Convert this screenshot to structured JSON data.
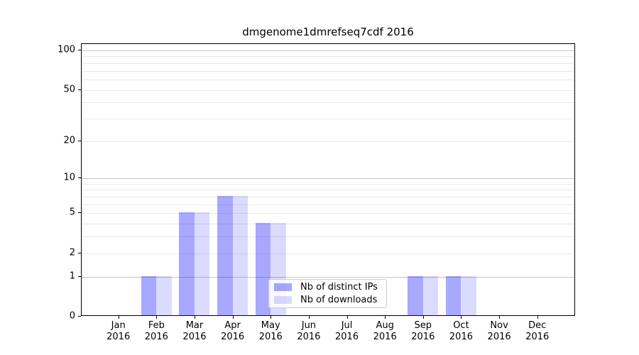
{
  "title": "dmgenome1dmrefseq7cdf 2016",
  "legend": {
    "items": [
      {
        "label": "Nb of distinct IPs"
      },
      {
        "label": "Nb of downloads"
      }
    ]
  },
  "chart_data": {
    "type": "bar",
    "title": "dmgenome1dmrefseq7cdf 2016",
    "categories": [
      "Jan",
      "Feb",
      "Mar",
      "Apr",
      "May",
      "Jun",
      "Jul",
      "Aug",
      "Sep",
      "Oct",
      "Nov",
      "Dec"
    ],
    "year_label": "2016",
    "series": [
      {
        "name": "Nb of distinct IPs",
        "color": "rgba(0,0,255,0.34)",
        "values": [
          0,
          1,
          5,
          7,
          4,
          0,
          0,
          0,
          1,
          1,
          0,
          0
        ]
      },
      {
        "name": "Nb of downloads",
        "color": "rgba(0,0,255,0.14)",
        "values": [
          0,
          1,
          5,
          7,
          4,
          0,
          0,
          0,
          1,
          1,
          0,
          0
        ]
      }
    ],
    "yscale": "log1p",
    "yticks": [
      0,
      1,
      2,
      5,
      10,
      20,
      50,
      100
    ],
    "grid_major": [
      1,
      10,
      100
    ],
    "grid_minor": [
      2,
      3,
      4,
      5,
      6,
      7,
      8,
      9,
      20,
      30,
      40,
      50,
      60,
      70,
      80,
      90
    ],
    "ylim": [
      0,
      112
    ],
    "grid": true,
    "legend_position": "lower center",
    "colors": {
      "bar_distinct_ips": "rgba(0,0,255,0.34)",
      "bar_downloads": "rgba(0,0,255,0.14)",
      "major_grid": "#c3c3c3",
      "minor_grid": "#e8e8e8",
      "axis": "#000000"
    }
  }
}
